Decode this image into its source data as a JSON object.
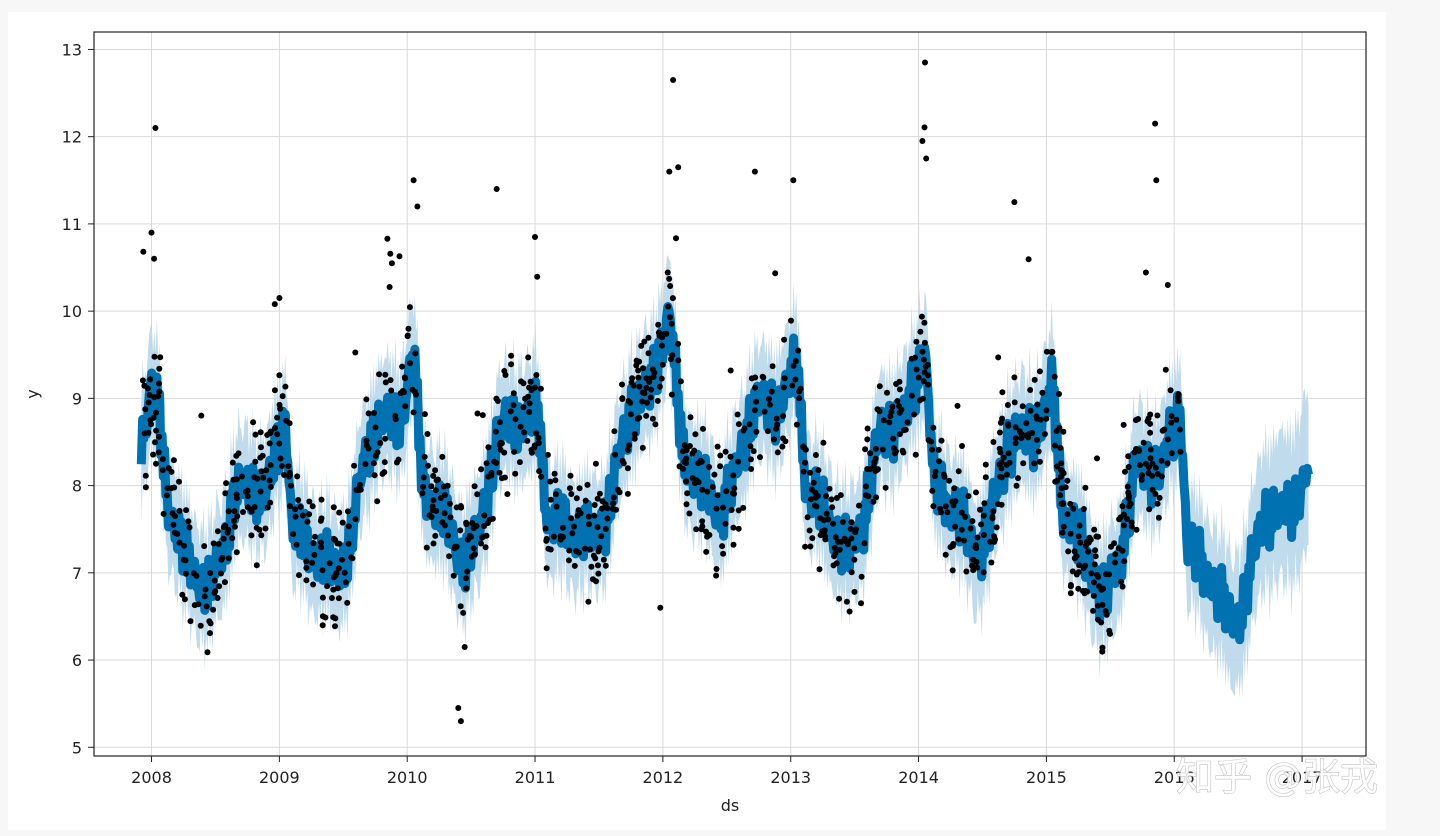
{
  "watermark": "知乎 @张戎",
  "chart_data": {
    "type": "scatter",
    "title": "",
    "xlabel": "ds",
    "ylabel": "y",
    "xlim": [
      2007.55,
      2017.5
    ],
    "ylim": [
      4.9,
      13.2
    ],
    "x_ticks": [
      "2008",
      "2009",
      "2010",
      "2011",
      "2012",
      "2013",
      "2014",
      "2015",
      "2016",
      "2017"
    ],
    "y_ticks": [
      "5",
      "6",
      "7",
      "8",
      "9",
      "10",
      "11",
      "12",
      "13"
    ],
    "grid": true,
    "colors": {
      "observed": "#000000",
      "forecast_line": "#0072b2",
      "uncertainty_band": "#b9d7ea",
      "grid": "#d9d9d9",
      "axis": "#222222"
    },
    "series": [
      {
        "kind": "forecast",
        "x_start": 2007.92,
        "x_end": 2017.05,
        "description_levels": "yhat follows yearly cycle",
        "yhat_knots": [
          [
            2007.92,
            8.5
          ],
          [
            2008.0,
            9.1
          ],
          [
            2008.06,
            8.8
          ],
          [
            2008.12,
            7.9
          ],
          [
            2008.25,
            7.2
          ],
          [
            2008.45,
            6.8
          ],
          [
            2008.55,
            7.2
          ],
          [
            2008.65,
            7.9
          ],
          [
            2008.8,
            8.0
          ],
          [
            2008.9,
            7.9
          ],
          [
            2009.05,
            8.8
          ],
          [
            2009.1,
            7.5
          ],
          [
            2009.3,
            7.2
          ],
          [
            2009.45,
            7.0
          ],
          [
            2009.55,
            7.3
          ],
          [
            2009.65,
            8.2
          ],
          [
            2009.75,
            8.7
          ],
          [
            2009.95,
            8.8
          ],
          [
            2010.05,
            9.5
          ],
          [
            2010.12,
            8.0
          ],
          [
            2010.3,
            7.6
          ],
          [
            2010.45,
            7.1
          ],
          [
            2010.55,
            7.4
          ],
          [
            2010.7,
            8.5
          ],
          [
            2010.8,
            8.8
          ],
          [
            2010.95,
            8.7
          ],
          [
            2011.02,
            8.9
          ],
          [
            2011.1,
            7.6
          ],
          [
            2011.3,
            7.5
          ],
          [
            2011.45,
            7.4
          ],
          [
            2011.55,
            7.6
          ],
          [
            2011.75,
            8.9
          ],
          [
            2011.9,
            9.1
          ],
          [
            2012.05,
            10.0
          ],
          [
            2012.15,
            8.4
          ],
          [
            2012.3,
            8.0
          ],
          [
            2012.45,
            7.7
          ],
          [
            2012.55,
            8.0
          ],
          [
            2012.7,
            8.9
          ],
          [
            2012.9,
            8.9
          ],
          [
            2013.05,
            9.4
          ],
          [
            2013.12,
            8.0
          ],
          [
            2013.3,
            7.6
          ],
          [
            2013.45,
            7.2
          ],
          [
            2013.55,
            7.5
          ],
          [
            2013.7,
            8.6
          ],
          [
            2013.9,
            8.8
          ],
          [
            2014.05,
            9.6
          ],
          [
            2014.12,
            8.0
          ],
          [
            2014.3,
            7.7
          ],
          [
            2014.45,
            7.2
          ],
          [
            2014.55,
            7.5
          ],
          [
            2014.7,
            8.5
          ],
          [
            2014.9,
            8.6
          ],
          [
            2015.05,
            9.1
          ],
          [
            2015.12,
            7.8
          ],
          [
            2015.3,
            7.2
          ],
          [
            2015.45,
            6.7
          ],
          [
            2015.55,
            7.0
          ],
          [
            2015.7,
            8.2
          ],
          [
            2015.9,
            8.2
          ],
          [
            2016.05,
            8.9
          ],
          [
            2016.1,
            7.3
          ],
          [
            2016.3,
            6.9
          ],
          [
            2016.45,
            6.4
          ],
          [
            2016.55,
            6.7
          ],
          [
            2016.7,
            7.7
          ],
          [
            2016.9,
            7.7
          ],
          [
            2017.05,
            8.2
          ]
        ]
      },
      {
        "kind": "observed",
        "x_start": 2007.92,
        "x_end": 2016.05
      }
    ]
  }
}
